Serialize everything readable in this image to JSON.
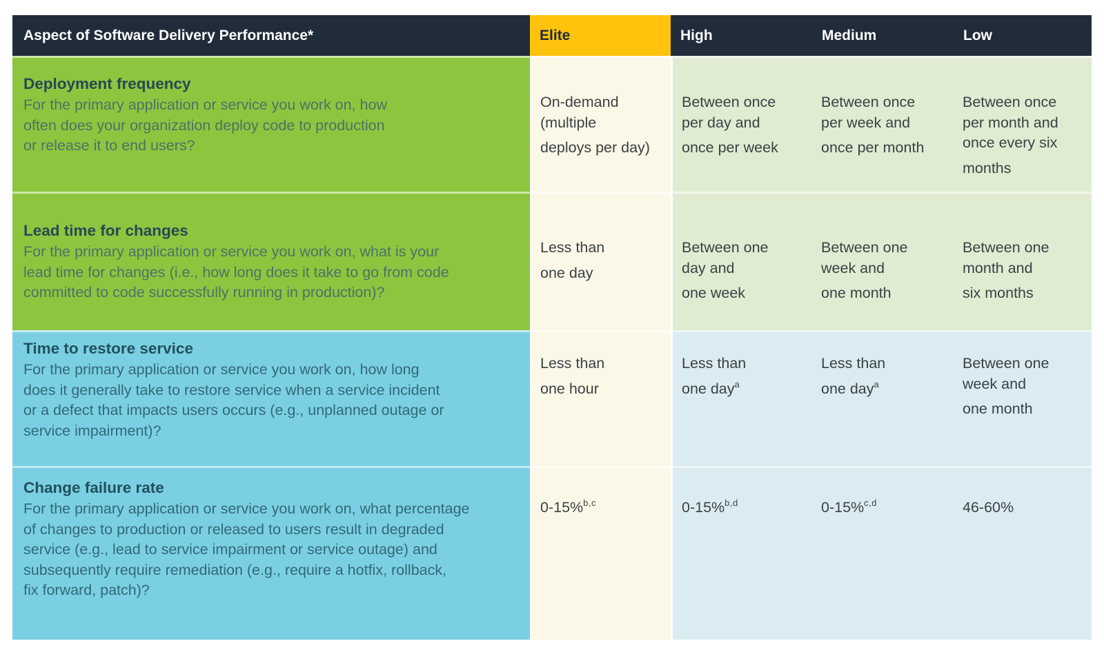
{
  "header": {
    "aspect": "Aspect of Software Delivery Performance*",
    "levels": [
      "Elite",
      "High",
      "Medium",
      "Low"
    ]
  },
  "rows": [
    {
      "title": "Deployment frequency",
      "description": "For the primary application or service you work on, how\noften does your organization deploy code to production\nor release it to end users?",
      "values": [
        {
          "text": "On-demand\n(multiple\ndeploys per day)",
          "note": ""
        },
        {
          "text": "Between once\nper day and\nonce per week",
          "note": ""
        },
        {
          "text": "Between once\nper week and\nonce per month",
          "note": ""
        },
        {
          "text": "Between once\nper month and\nonce every six\nmonths",
          "note": ""
        }
      ]
    },
    {
      "title": "Lead time for changes",
      "description": "For the primary application or service you work on, what is your\nlead time for changes (i.e., how long does it take to go from code\ncommitted to code successfully running in production)?",
      "values": [
        {
          "text": "Less than\none day",
          "note": ""
        },
        {
          "text": "Between one\nday and\none week",
          "note": ""
        },
        {
          "text": "Between one\nweek and\none month",
          "note": ""
        },
        {
          "text": "Between one\nmonth and\nsix months",
          "note": ""
        }
      ]
    },
    {
      "title": "Time to restore service",
      "description": "For the primary application or service you work on, how long\ndoes it generally take to restore service when a service incident\nor a defect that impacts users occurs (e.g., unplanned outage or\nservice impairment)?",
      "values": [
        {
          "text": "Less than\none hour",
          "note": ""
        },
        {
          "text": "Less than\none day",
          "note": "a"
        },
        {
          "text": "Less than\none day",
          "note": "a"
        },
        {
          "text": "Between one\nweek and\none month",
          "note": ""
        }
      ]
    },
    {
      "title": "Change failure rate",
      "description": "For the primary application or service you work on, what percentage\nof changes to production or released to users result in degraded\nservice (e.g., lead to service impairment or service outage) and\nsubsequently require remediation (e.g., require a hotfix, rollback,\nfix forward, patch)?",
      "values": [
        {
          "text": "0-15%",
          "note": "b,c"
        },
        {
          "text": "0-15%",
          "note": "b,d"
        },
        {
          "text": "0-15%",
          "note": "c,d"
        },
        {
          "text": "46-60%",
          "note": ""
        }
      ]
    }
  ],
  "colors": {
    "navy": "#202C3A",
    "yellow": "#FFC20D",
    "green": "#8CC63F",
    "blue": "#7AD0E2",
    "cream": "#FCF8E7",
    "light_green": "#E0ECD1",
    "light_blue": "#DAECF2"
  },
  "chart_data": {
    "type": "table",
    "title": "Aspect of Software Delivery Performance*",
    "columns": [
      "Aspect of Software Delivery Performance*",
      "Elite",
      "High",
      "Medium",
      "Low"
    ],
    "rows": [
      [
        "Deployment frequency — For the primary application or service you work on, how often does your organization deploy code to production or release it to end users?",
        "On-demand (multiple deploys per day)",
        "Between once per day and once per week",
        "Between once per week and once per month",
        "Between once per month and once every six months"
      ],
      [
        "Lead time for changes — For the primary application or service you work on, what is your lead time for changes (i.e., how long does it take to go from code committed to code successfully running in production)?",
        "Less than one day",
        "Between one day and one week",
        "Between one week and one month",
        "Between one month and six months"
      ],
      [
        "Time to restore service — For the primary application or service you work on, how long does it generally take to restore service when a service incident or a defect that impacts users occurs (e.g., unplanned outage or service impairment)?",
        "Less than one hour",
        "Less than one day [a]",
        "Less than one day [a]",
        "Between one week and one month"
      ],
      [
        "Change failure rate — For the primary application or service you work on, what percentage of changes to production or released to users result in degraded service (e.g., lead to service impairment or service outage) and subsequently require remediation (e.g., require a hotfix, rollback, fix forward, patch)?",
        "0-15% [b,c]",
        "0-15% [b,d]",
        "0-15% [c,d]",
        "46-60%"
      ]
    ]
  }
}
